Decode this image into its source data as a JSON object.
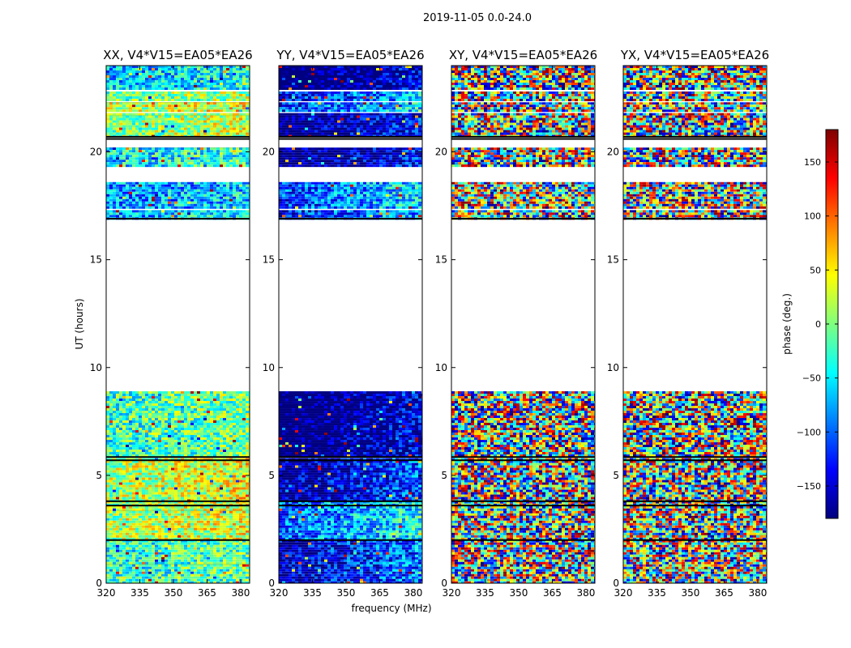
{
  "chart_data": {
    "type": "heatmap",
    "suptitle": "2019-11-05 0.0-24.0",
    "xlabel": "frequency (MHz)",
    "ylabel": "UT (hours)",
    "xlim": [
      320,
      384
    ],
    "ylim": [
      0,
      24
    ],
    "xticks": [
      320,
      335,
      350,
      365,
      380
    ],
    "yticks": [
      0,
      5,
      10,
      15,
      20
    ],
    "colorbar": {
      "label": "phase (deg.)",
      "range": [
        -180,
        180
      ],
      "ticks": [
        150,
        100,
        50,
        0,
        -50,
        -100,
        -150
      ],
      "colormap": [
        "#00007f",
        "#0000ff",
        "#007fff",
        "#00ffff",
        "#7fff7f",
        "#ffff00",
        "#ff7f00",
        "#ff0000",
        "#7f0000"
      ]
    },
    "panels": [
      {
        "title": "XX, V4*V15=EA05*EA26",
        "style": "smooth"
      },
      {
        "title": "YY, V4*V15=EA05*EA26",
        "style": "smooth"
      },
      {
        "title": "XY, V4*V15=EA05*EA26",
        "style": "noise"
      },
      {
        "title": "YX, V4*V15=EA05*EA26",
        "style": "noise"
      }
    ],
    "data_segments_hours": [
      [
        0.0,
        2.0
      ],
      [
        2.0,
        3.8
      ],
      [
        3.8,
        5.8
      ],
      [
        5.9,
        8.9
      ],
      [
        16.9,
        17.3
      ],
      [
        17.4,
        18.6
      ],
      [
        19.3,
        20.2
      ],
      [
        20.7,
        21.8
      ],
      [
        21.9,
        22.3
      ],
      [
        22.4,
        22.8
      ],
      [
        22.9,
        24.0
      ]
    ]
  }
}
